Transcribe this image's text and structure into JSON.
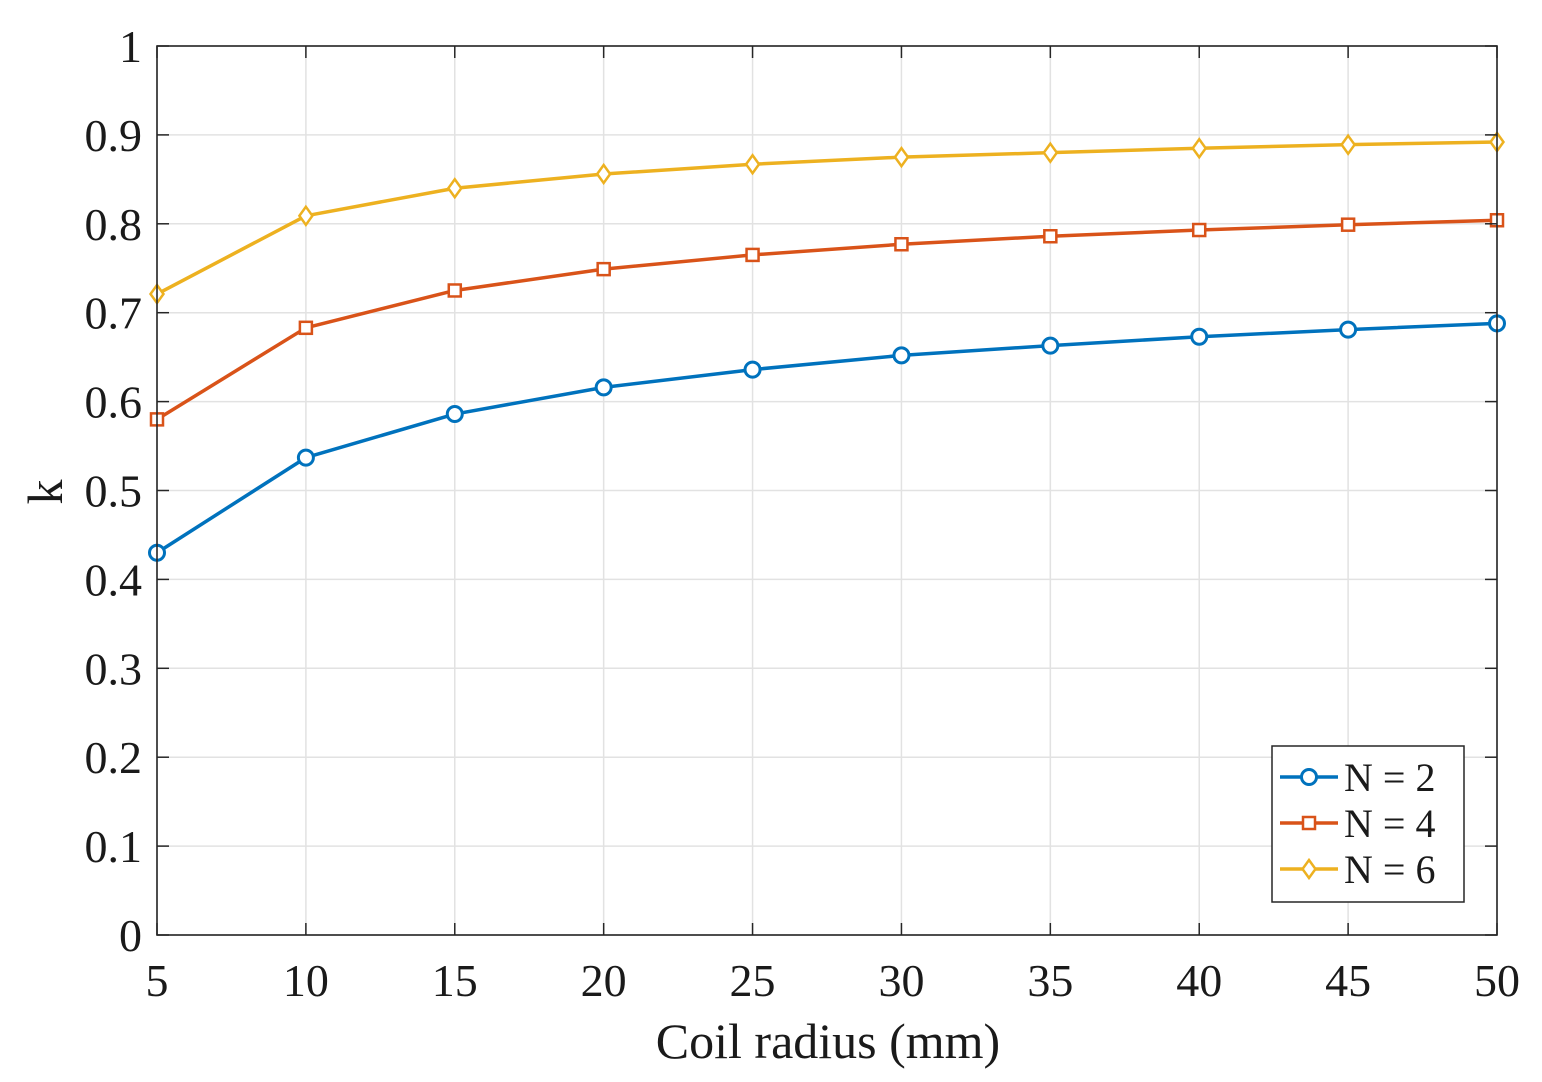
{
  "chart_data": {
    "type": "line",
    "title": "",
    "xlabel": "Coil radius (mm)",
    "ylabel": "k",
    "x": [
      5,
      10,
      15,
      20,
      25,
      30,
      35,
      40,
      45,
      50
    ],
    "xlim": [
      5,
      50
    ],
    "ylim": [
      0,
      1
    ],
    "xticks": [
      "5",
      "10",
      "15",
      "20",
      "25",
      "30",
      "35",
      "40",
      "45",
      "50"
    ],
    "yticks": [
      "0",
      "0.1",
      "0.2",
      "0.3",
      "0.4",
      "0.5",
      "0.6",
      "0.7",
      "0.8",
      "0.9",
      "1"
    ],
    "grid": true,
    "legend_position": "bottom-right",
    "series": [
      {
        "name": "N = 2",
        "color": "#0072BD",
        "marker": "circle",
        "values": [
          0.43,
          0.537,
          0.586,
          0.616,
          0.636,
          0.652,
          0.663,
          0.673,
          0.681,
          0.688
        ]
      },
      {
        "name": "N = 4",
        "color": "#D95319",
        "marker": "square",
        "values": [
          0.58,
          0.683,
          0.725,
          0.749,
          0.765,
          0.777,
          0.786,
          0.793,
          0.799,
          0.804
        ]
      },
      {
        "name": "N = 6",
        "color": "#EDB120",
        "marker": "diamond",
        "values": [
          0.721,
          0.809,
          0.84,
          0.856,
          0.867,
          0.875,
          0.88,
          0.885,
          0.889,
          0.892
        ]
      }
    ]
  }
}
